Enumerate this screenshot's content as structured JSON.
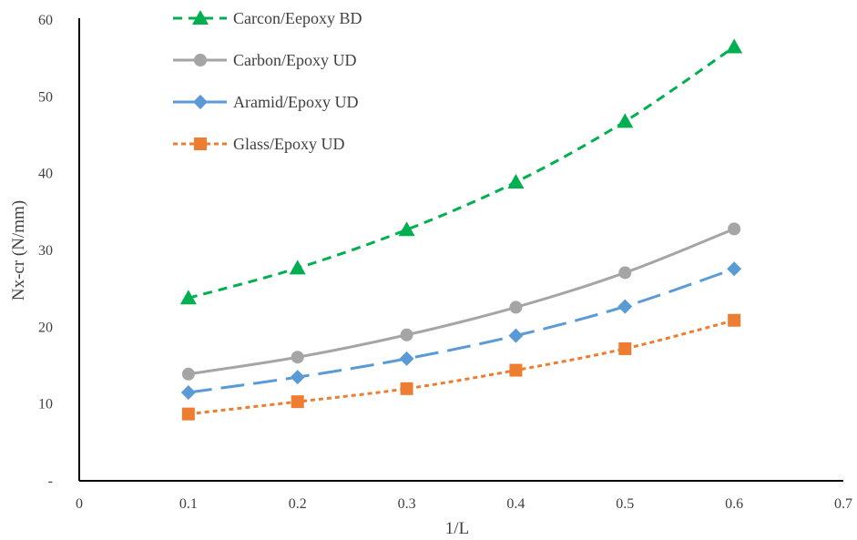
{
  "chart_data": {
    "type": "line",
    "xlabel": "1/L",
    "ylabel": "Nx-cr (N/mm)",
    "xlim": [
      0,
      0.7
    ],
    "ylim": [
      0,
      60
    ],
    "x_ticks": [
      {
        "value": 0,
        "label": "0"
      },
      {
        "value": 0.1,
        "label": "0.1"
      },
      {
        "value": 0.2,
        "label": "0.2"
      },
      {
        "value": 0.3,
        "label": "0.3"
      },
      {
        "value": 0.4,
        "label": "0.4"
      },
      {
        "value": 0.5,
        "label": "0.5"
      },
      {
        "value": 0.6,
        "label": "0.6"
      },
      {
        "value": 0.7,
        "label": "0.7"
      }
    ],
    "y_ticks": [
      {
        "value": 0,
        "label": "-"
      },
      {
        "value": 10,
        "label": "10"
      },
      {
        "value": 20,
        "label": "20"
      },
      {
        "value": 30,
        "label": "30"
      },
      {
        "value": 40,
        "label": "40"
      },
      {
        "value": 50,
        "label": "50"
      },
      {
        "value": 60,
        "label": "60"
      }
    ],
    "grid": false,
    "legend_position": "top-left",
    "x": [
      0.1,
      0.2,
      0.3,
      0.4,
      0.5,
      0.6
    ],
    "series": [
      {
        "name": "Carcon/Eepoxy BD",
        "values": [
          23.8,
          27.7,
          32.7,
          38.9,
          46.8,
          56.5
        ],
        "color": "#00b050",
        "marker": "triangle",
        "dash": "short"
      },
      {
        "name": "Carbon/Epoxy UD",
        "values": [
          13.9,
          16.1,
          19.0,
          22.6,
          27.1,
          32.8
        ],
        "color": "#a5a5a5",
        "marker": "circle",
        "dash": "solid"
      },
      {
        "name": "Aramid/Epoxy UD",
        "values": [
          11.5,
          13.5,
          15.9,
          18.9,
          22.7,
          27.6
        ],
        "color": "#5b9bd5",
        "marker": "diamond",
        "dash": "long"
      },
      {
        "name": "Glass/Epoxy UD",
        "values": [
          8.7,
          10.3,
          12.0,
          14.4,
          17.2,
          20.9
        ],
        "color": "#ed7d31",
        "marker": "square",
        "dash": "dot"
      }
    ]
  }
}
